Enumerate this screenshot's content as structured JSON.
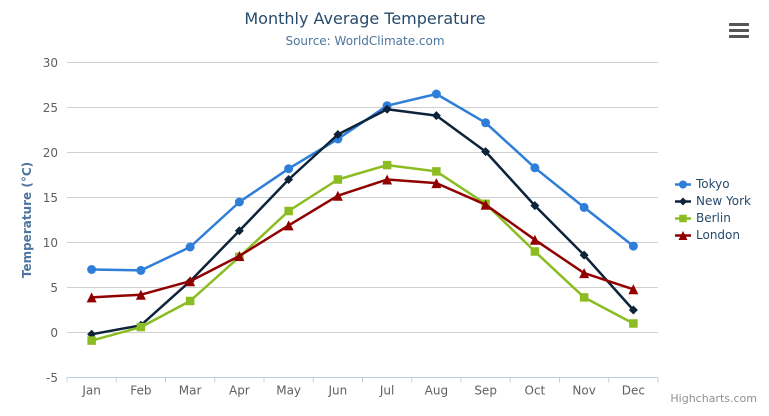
{
  "chart": {
    "title": "Monthly Average Temperature",
    "subtitle": "Source: WorldClimate.com",
    "y_axis_title": "Temperature (°C)",
    "credits": "Highcharts.com",
    "context_menu_icon": "hamburger-icon",
    "colors": {
      "title_text": "#274b6d",
      "subtitle_text": "#4d759e",
      "axis_label_text": "#606060",
      "legend_text": "#274b6d",
      "credits_text": "#909090",
      "grid_line": "#d0d0d0",
      "axis_line": "#c0d0e0",
      "background": "#ffffff"
    }
  },
  "chart_data": {
    "type": "line",
    "title": "Monthly Average Temperature",
    "subtitle": "Source: WorldClimate.com",
    "xlabel": "",
    "ylabel": "Temperature (°C)",
    "categories": [
      "Jan",
      "Feb",
      "Mar",
      "Apr",
      "May",
      "Jun",
      "Jul",
      "Aug",
      "Sep",
      "Oct",
      "Nov",
      "Dec"
    ],
    "ylim": [
      -5,
      30
    ],
    "ytick_interval": 5,
    "grid": true,
    "legend_position": "right",
    "series": [
      {
        "name": "Tokyo",
        "color": "#2f7ed8",
        "marker": "circle",
        "values": [
          7.0,
          6.9,
          9.5,
          14.5,
          18.2,
          21.5,
          25.2,
          26.5,
          23.3,
          18.3,
          13.9,
          9.6
        ]
      },
      {
        "name": "New York",
        "color": "#0d233a",
        "marker": "diamond",
        "values": [
          -0.2,
          0.8,
          5.7,
          11.3,
          17.0,
          22.0,
          24.8,
          24.1,
          20.1,
          14.1,
          8.6,
          2.5
        ]
      },
      {
        "name": "Berlin",
        "color": "#8bbc21",
        "marker": "square",
        "values": [
          -0.9,
          0.6,
          3.5,
          8.4,
          13.5,
          17.0,
          18.6,
          17.9,
          14.3,
          9.0,
          3.9,
          1.0
        ]
      },
      {
        "name": "London",
        "color": "#910000",
        "marker": "triangle",
        "values": [
          3.9,
          4.2,
          5.7,
          8.5,
          11.9,
          15.2,
          17.0,
          16.6,
          14.2,
          10.3,
          6.6,
          4.8
        ]
      }
    ]
  }
}
